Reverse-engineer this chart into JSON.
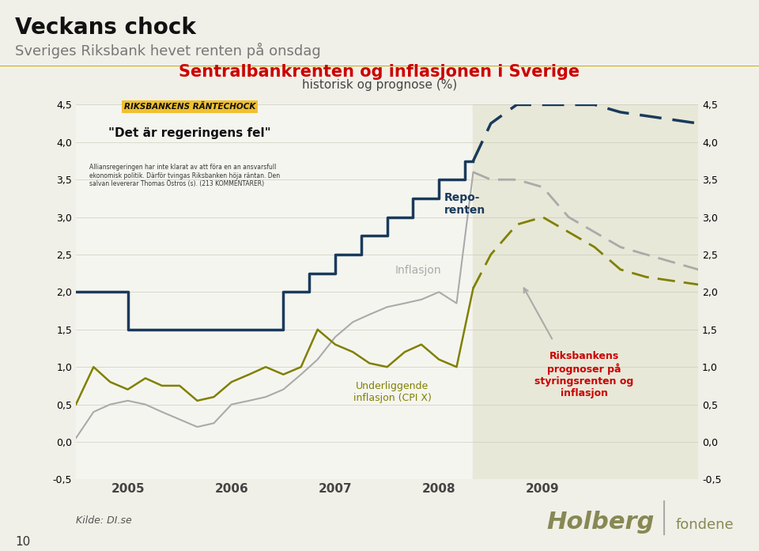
{
  "title": "Sentralbankrenten og inflasjonen i Sverige",
  "subtitle": "historisk og prognose (%)",
  "heading1": "Veckans chock",
  "heading2": "Sveriges Riksbank hevet renten på onsdag",
  "ylim": [
    -0.5,
    4.5
  ],
  "yticks": [
    -0.5,
    0.0,
    0.5,
    1.0,
    1.5,
    2.0,
    2.5,
    3.0,
    3.5,
    4.0,
    4.5
  ],
  "background_color": "#f5f5f0",
  "plot_bg_color": "#f5f5f0",
  "forecast_bg_color": "#e8e8d8",
  "repo_x": [
    2004.0,
    2004.25,
    2004.25,
    2004.5,
    2004.5,
    2005.0,
    2005.0,
    2005.5,
    2005.5,
    2006.0,
    2006.0,
    2006.25,
    2006.25,
    2006.5,
    2006.5,
    2006.75,
    2006.75,
    2007.0,
    2007.0,
    2007.25,
    2007.25,
    2007.5,
    2007.5,
    2007.75,
    2007.75,
    2007.83
  ],
  "repo_y": [
    2.0,
    2.0,
    2.0,
    2.0,
    1.5,
    1.5,
    1.5,
    1.5,
    1.5,
    1.5,
    2.0,
    2.0,
    2.25,
    2.25,
    2.5,
    2.5,
    2.75,
    2.75,
    3.0,
    3.0,
    3.25,
    3.25,
    3.5,
    3.5,
    3.75,
    3.75
  ],
  "repo_color": "#1a3a5c",
  "repo_forecast_x": [
    2007.83,
    2008.0,
    2008.25,
    2008.5,
    2008.75,
    2009.0,
    2009.25,
    2009.5,
    2009.75,
    2010.0
  ],
  "repo_forecast_y": [
    3.75,
    4.25,
    4.5,
    4.5,
    4.5,
    4.5,
    4.4,
    4.35,
    4.3,
    4.25
  ],
  "repo_forecast_color": "#1a3a5c",
  "inflation_x": [
    2004.0,
    2004.17,
    2004.33,
    2004.5,
    2004.67,
    2004.83,
    2005.0,
    2005.17,
    2005.33,
    2005.5,
    2005.67,
    2005.83,
    2006.0,
    2006.17,
    2006.33,
    2006.5,
    2006.67,
    2006.83,
    2007.0,
    2007.17,
    2007.33,
    2007.5,
    2007.67,
    2007.83
  ],
  "inflation_y": [
    0.05,
    0.4,
    0.5,
    0.55,
    0.5,
    0.4,
    0.3,
    0.2,
    0.25,
    0.5,
    0.55,
    0.6,
    0.7,
    0.9,
    1.1,
    1.4,
    1.6,
    1.7,
    1.8,
    1.85,
    1.9,
    2.0,
    1.85,
    3.6
  ],
  "inflation_color": "#aaaaaa",
  "inflation_forecast_x": [
    2007.83,
    2008.0,
    2008.25,
    2008.5,
    2008.75,
    2009.0,
    2009.25,
    2009.5,
    2009.75,
    2010.0
  ],
  "inflation_forecast_y": [
    3.6,
    3.5,
    3.5,
    3.4,
    3.0,
    2.8,
    2.6,
    2.5,
    2.4,
    2.3
  ],
  "inflation_forecast_color": "#aaaaaa",
  "cpix_x": [
    2004.0,
    2004.17,
    2004.33,
    2004.5,
    2004.67,
    2004.83,
    2005.0,
    2005.17,
    2005.33,
    2005.5,
    2005.67,
    2005.83,
    2006.0,
    2006.17,
    2006.33,
    2006.5,
    2006.67,
    2006.83,
    2007.0,
    2007.17,
    2007.33,
    2007.5,
    2007.67,
    2007.83
  ],
  "cpix_y": [
    0.5,
    1.0,
    0.8,
    0.7,
    0.85,
    0.75,
    0.75,
    0.55,
    0.6,
    0.8,
    0.9,
    1.0,
    0.9,
    1.0,
    1.5,
    1.3,
    1.2,
    1.05,
    1.0,
    1.2,
    1.3,
    1.1,
    1.0,
    2.05
  ],
  "cpix_color": "#808000",
  "cpix_forecast_x": [
    2007.83,
    2008.0,
    2008.25,
    2008.5,
    2008.75,
    2009.0,
    2009.25,
    2009.5,
    2009.75,
    2010.0
  ],
  "cpix_forecast_y": [
    2.05,
    2.5,
    2.9,
    3.0,
    2.8,
    2.6,
    2.3,
    2.2,
    2.15,
    2.1
  ],
  "cpix_forecast_color": "#808000",
  "forecast_start": 2007.83,
  "forecast_end": 2010.0,
  "xlabel_ticks": [
    2004.5,
    2005.5,
    2006.5,
    2007.5,
    2008.5,
    2009.5
  ],
  "xlabel_labels": [
    "2005",
    "2006",
    "2007",
    "2008",
    "2009",
    ""
  ],
  "xlim": [
    2004.0,
    2010.0
  ],
  "title_color": "#cc0000",
  "subtitle_color": "#444444",
  "label_repo": "Repo-\nrenten",
  "label_inflation": "Inflasjon",
  "label_cpix": "Underliggende\ninflasjon (CPI X)",
  "label_forecast": "Riksbankens\nprognoser på\nstyringsrenten og\ninflasjon",
  "source_text": "Kilde: DI.se"
}
